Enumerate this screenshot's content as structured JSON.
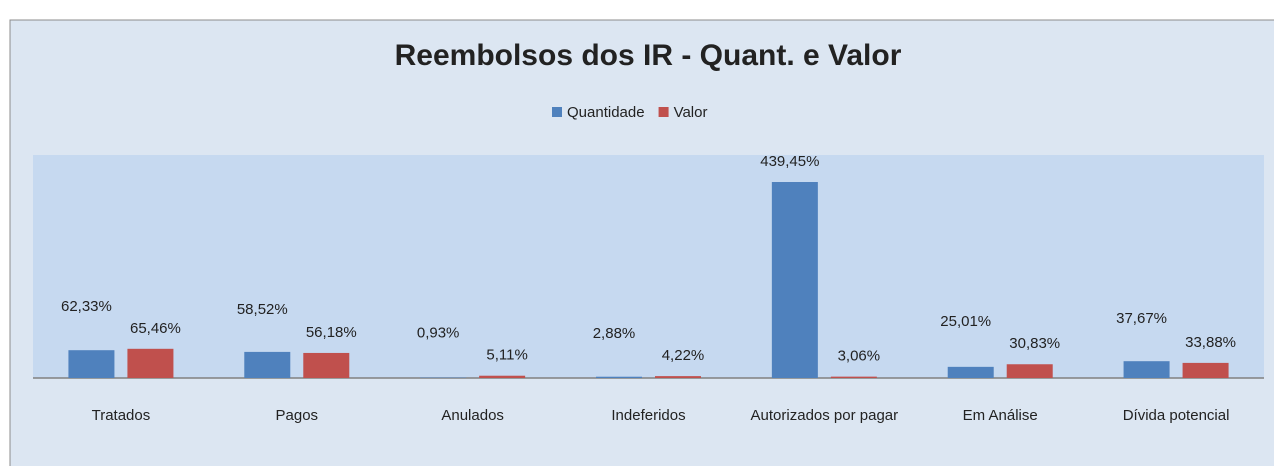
{
  "chart_data": {
    "type": "bar",
    "title": "Reembolsos dos IR - Quant. e Valor",
    "categories": [
      "Tratados",
      "Pagos",
      "Anulados",
      "Indeferidos",
      "Autorizados por pagar",
      "Em Análise",
      "Dívida potencial"
    ],
    "series": [
      {
        "name": "Quantidade",
        "color": "#4f81bd",
        "values": [
          62.33,
          58.52,
          0.93,
          2.88,
          439.45,
          25.01,
          37.67
        ],
        "value_labels": [
          "62,33%",
          "58,52%",
          "0,93%",
          "2,88%",
          "439,45%",
          "25,01%",
          "37,67%"
        ]
      },
      {
        "name": "Valor",
        "color": "#c0504d",
        "values": [
          65.46,
          56.18,
          5.11,
          4.22,
          3.06,
          30.83,
          33.88
        ],
        "value_labels": [
          "65,46%",
          "56,18%",
          "5,11%",
          "4,22%",
          "3,06%",
          "30,83%",
          "33,88%"
        ]
      }
    ],
    "ylim": [
      0,
      500
    ],
    "legend": "top"
  }
}
